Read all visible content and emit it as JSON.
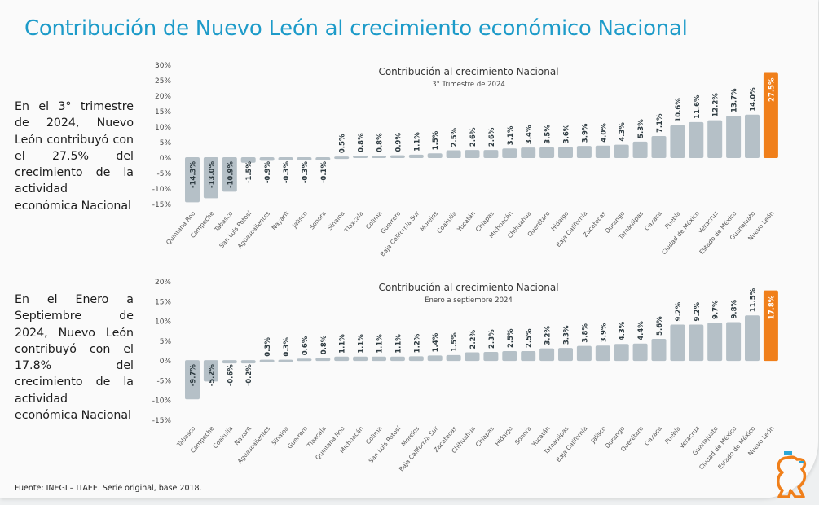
{
  "page": {
    "title": "Contribución de Nuevo León al crecimiento económico Nacional",
    "text_q3": "En el 3° trimestre de 2024, Nuevo León contribuyó con el 27.5% del crecimiento de la actividad económica Nacional",
    "text_ytd": "En el Enero a Septiembre de 2024, Nuevo León contribuyó con el 17.8% del crecimiento de la actividad económica Nacional",
    "source": "Fuente: INEGI – ITAEE. Serie original, base 2018."
  },
  "colors": {
    "title": "#1d9bc9",
    "bar": "#b5c0c7",
    "highlight": "#f07f1a"
  },
  "chart_data": [
    {
      "type": "bar",
      "title": "Contribución al crecimiento Nacional",
      "subtitle": "3° Trimestre de 2024",
      "ylim": [
        -15,
        30
      ],
      "yticks": [
        30,
        25,
        20,
        15,
        10,
        5,
        0,
        -5,
        -10,
        -15
      ],
      "highlight": "Nuevo León",
      "categories": [
        "Quintana Roo",
        "Campeche",
        "Tabasco",
        "San Luis Potosí",
        "Aguascalientes",
        "Nayarit",
        "Jalisco",
        "Sonora",
        "Sinaloa",
        "Tlaxcala",
        "Colima",
        "Guerrero",
        "Baja California Sur",
        "Morelos",
        "Coahuila",
        "Yucatán",
        "Chiapas",
        "Michoacán",
        "Chihuahua",
        "Querétaro",
        "Hidalgo",
        "Baja California",
        "Zacatecas",
        "Durango",
        "Tamaulipas",
        "Oaxaca",
        "Puebla",
        "Ciudad de México",
        "Veracruz",
        "Estado de México",
        "Guanajuato",
        "Nuevo León"
      ],
      "values": [
        -14.3,
        -13.0,
        -10.9,
        -1.5,
        -0.9,
        -0.3,
        -0.3,
        -0.1,
        0.5,
        0.8,
        0.8,
        0.9,
        1.1,
        1.5,
        2.5,
        2.6,
        2.6,
        3.1,
        3.4,
        3.5,
        3.6,
        3.9,
        4.0,
        4.3,
        5.3,
        7.1,
        10.6,
        11.6,
        12.2,
        13.7,
        14.0,
        27.5
      ]
    },
    {
      "type": "bar",
      "title": "Contribución al crecimiento Nacional",
      "subtitle": "Enero a septiembre 2024",
      "ylim": [
        -15,
        20
      ],
      "yticks": [
        20,
        15,
        10,
        5,
        0,
        -5,
        -10,
        -15
      ],
      "highlight": "Nuevo León",
      "categories": [
        "Tabasco",
        "Campeche",
        "Coahuila",
        "Nayarit",
        "Aguascalientes",
        "Sinaloa",
        "Guerrero",
        "Tlaxcala",
        "Quintana Roo",
        "Michoacán",
        "Colima",
        "San Luis Potosí",
        "Morelos",
        "Baja California Sur",
        "Zacatecas",
        "Chihuahua",
        "Chiapas",
        "Hidalgo",
        "Sonora",
        "Yucatán",
        "Tamaulipas",
        "Baja California",
        "Jalisco",
        "Durango",
        "Querétaro",
        "Oaxaca",
        "Puebla",
        "Veracruz",
        "Guanajuato",
        "Ciudad de México",
        "Estado de México",
        "Nuevo León"
      ],
      "values": [
        -9.7,
        -5.2,
        -0.6,
        -0.2,
        0.3,
        0.3,
        0.6,
        0.8,
        1.1,
        1.1,
        1.1,
        1.1,
        1.2,
        1.4,
        1.5,
        2.2,
        2.3,
        2.5,
        2.5,
        3.2,
        3.3,
        3.8,
        3.9,
        4.3,
        4.4,
        5.6,
        9.2,
        9.2,
        9.7,
        9.8,
        11.5,
        17.8
      ]
    }
  ]
}
